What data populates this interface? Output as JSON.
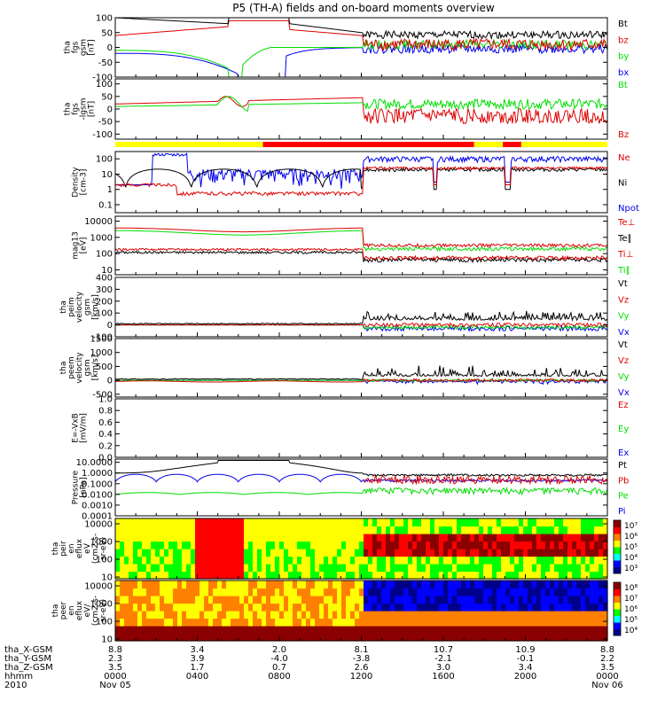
{
  "title": "P5 (TH-A) fields and on-board moments overview",
  "colors": {
    "black": "#000000",
    "red": "#dd0000",
    "green": "#00dd00",
    "blue": "#0000ee",
    "yellow": "#ffff00",
    "barred": "#ff0000"
  },
  "time_axis": {
    "start": "2010-11-05 00:00",
    "end": "2010-11-06 00:00",
    "row_labels": [
      "tha_X-GSM",
      "tha_Y-GSM",
      "tha_Z-GSM",
      "hhmm",
      "2010"
    ],
    "columns": [
      {
        "hour": 0,
        "values": [
          "8.8",
          "2.3",
          "3.5",
          "0000",
          "Nov 05"
        ]
      },
      {
        "hour": 4,
        "values": [
          "3.4",
          "3.9",
          "1.7",
          "0400",
          ""
        ]
      },
      {
        "hour": 8,
        "values": [
          "2.0",
          "-4.0",
          "0.7",
          "0800",
          ""
        ]
      },
      {
        "hour": 12,
        "values": [
          "8.1",
          "-3.8",
          "2.6",
          "1200",
          ""
        ]
      },
      {
        "hour": 16,
        "values": [
          "10.7",
          "-2.1",
          "3.0",
          "1600",
          ""
        ]
      },
      {
        "hour": 20,
        "values": [
          "10.9",
          "-0.1",
          "3.4",
          "2000",
          ""
        ]
      },
      {
        "hour": 24,
        "values": [
          "8.8",
          "2.2",
          "3.5",
          "0000",
          "Nov 06"
        ]
      }
    ]
  },
  "chart_data": [
    {
      "type": "line",
      "name": "fgs",
      "ylabel": [
        "tha",
        "fgs",
        "gsm",
        "[nT]"
      ],
      "ylim": [
        -100,
        100
      ],
      "ticks": [
        -100,
        -50,
        0,
        50,
        100
      ],
      "scale": "linear",
      "legend": [
        "Bt",
        "bz",
        "by",
        "bx"
      ],
      "legend_colors": [
        "black",
        "red",
        "green",
        "blue"
      ]
    },
    {
      "type": "line",
      "name": "fgs-dsl",
      "ylabel": [
        "tha",
        "fgs",
        "-lgsm",
        "[nT]"
      ],
      "ylim": [
        -120,
        120
      ],
      "ticks": [
        -100,
        -50,
        0,
        50,
        100
      ],
      "scale": "linear",
      "legend": [
        "Bt",
        "Bz"
      ],
      "legend_colors": [
        "green",
        "red"
      ]
    },
    {
      "type": "line",
      "name": "density",
      "ylabel": [
        "Density",
        "[cm-3]"
      ],
      "ylim": [
        0.03,
        300
      ],
      "ticks": [
        0.1,
        1,
        10,
        100
      ],
      "tick_labels": [
        "0.1",
        "1",
        "10",
        "100"
      ],
      "scale": "log",
      "legend": [
        "Ne",
        "Ni",
        "Npot"
      ],
      "legend_colors": [
        "red",
        "black",
        "blue"
      ]
    },
    {
      "type": "line",
      "name": "temperature",
      "ylabel": [
        "mag13",
        "[eV]"
      ],
      "ylim": [
        5,
        20000
      ],
      "ticks": [
        10,
        100,
        1000,
        10000
      ],
      "tick_labels": [
        "10",
        "100",
        "1000",
        "10000"
      ],
      "scale": "log",
      "legend": [
        "Te⊥",
        "Te∥",
        "Ti⊥",
        "Ti∥"
      ],
      "legend_colors": [
        "red",
        "black",
        "red",
        "green"
      ]
    },
    {
      "type": "line",
      "name": "peim-velocity",
      "ylabel": [
        "tha",
        "peim",
        "velocity",
        "gsm",
        "[km/s]"
      ],
      "ylim": [
        -100,
        400
      ],
      "ticks": [
        -100,
        0,
        100,
        200,
        300,
        400
      ],
      "scale": "linear",
      "legend": [
        "Vt",
        "Vz",
        "Vy",
        "Vx"
      ],
      "legend_colors": [
        "black",
        "red",
        "green",
        "blue"
      ]
    },
    {
      "type": "line",
      "name": "peem-velocity",
      "ylabel": [
        "tha",
        "peem",
        "velocity",
        "gsm",
        "[km/s]"
      ],
      "ylim": [
        -600,
        1500
      ],
      "ticks": [
        -500,
        0,
        500,
        1000,
        1500
      ],
      "scale": "linear",
      "legend": [
        "Vt",
        "Vz",
        "Vy",
        "Vx"
      ],
      "legend_colors": [
        "black",
        "red",
        "green",
        "blue"
      ]
    },
    {
      "type": "line",
      "name": "efield",
      "ylabel": [
        "E=-VxB",
        "[mV/m]"
      ],
      "ylim": [
        0,
        1
      ],
      "ticks": [
        0,
        0.2,
        0.4,
        0.6,
        0.8,
        1.0
      ],
      "tick_labels": [
        "0.0",
        "0.2",
        "0.4",
        "0.6",
        "0.8",
        "1.0"
      ],
      "scale": "linear",
      "legend": [
        "Ez",
        "Ey",
        "Ex"
      ],
      "legend_colors": [
        "red",
        "green",
        "blue"
      ]
    },
    {
      "type": "line",
      "name": "pressure",
      "ylabel": [
        "Pressure",
        "[nPa]"
      ],
      "ylim": [
        0.0001,
        20
      ],
      "ticks": [
        0.0001,
        0.001,
        0.01,
        0.1,
        1,
        10
      ],
      "tick_labels": [
        "0.0001",
        "0.0010",
        "0.0100",
        "0.1000",
        "1.0000",
        "10.0000"
      ],
      "scale": "log",
      "legend": [
        "Pt",
        "Pb",
        "Pe",
        "Pi"
      ],
      "legend_colors": [
        "black",
        "red",
        "green",
        "blue"
      ]
    },
    {
      "type": "heatmap",
      "name": "peir-eflux",
      "ylabel": [
        "tha",
        "peir",
        "en",
        "eflux",
        "eV",
        "(cm2-s-",
        "sr-eV)"
      ],
      "ylim": [
        8,
        20000
      ],
      "ticks": [
        10,
        100,
        1000,
        10000
      ],
      "tick_labels": [
        "10",
        "100",
        "1000",
        "10000"
      ],
      "scale": "log",
      "colorbar_labels": [
        "10⁷",
        "10⁶",
        "10⁵",
        "10⁴",
        "10³"
      ]
    },
    {
      "type": "heatmap",
      "name": "peer-eflux",
      "ylabel": [
        "tha",
        "peer",
        "en",
        "eflux",
        "eV/",
        "(cm2-s-",
        "sr-eV)"
      ],
      "ylim": [
        8,
        20000
      ],
      "ticks": [
        10,
        100,
        1000,
        10000
      ],
      "tick_labels": [
        "10",
        "100",
        "1000",
        "10000"
      ],
      "scale": "log",
      "colorbar_labels": [
        "10⁸",
        "10⁷",
        "10⁶",
        "10⁵",
        "10⁴"
      ]
    }
  ]
}
